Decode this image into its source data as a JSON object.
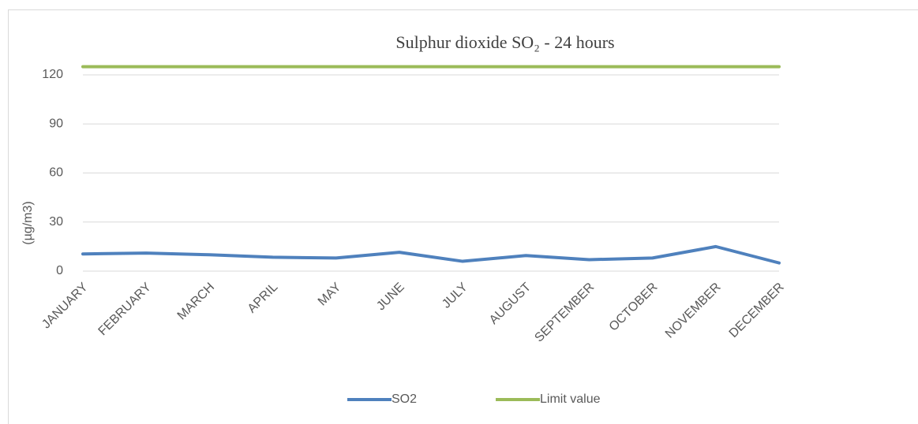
{
  "chart_data": {
    "type": "line",
    "title": "Sulphur dioxide SO₂ - 24 hours",
    "y_label": "(µg/m3)",
    "categories": [
      "JANUARY",
      "FEBRUARY",
      "MARCH",
      "APRIL",
      "MAY",
      "JUNE",
      "JULY",
      "AUGUST",
      "SEPTEMBER",
      "OCTOBER",
      "NOVEMBER",
      "DECEMBER"
    ],
    "series": [
      {
        "name": "SO2",
        "color": "#4f81bd",
        "values": [
          10.5,
          11,
          10,
          8.5,
          8,
          11.5,
          6,
          9.5,
          7,
          8,
          15,
          5
        ]
      },
      {
        "name": "Limit value",
        "color": "#9bbb59",
        "values": [
          125,
          125,
          125,
          125,
          125,
          125,
          125,
          125,
          125,
          125,
          125,
          125
        ]
      }
    ],
    "ylim": [
      0,
      120
    ],
    "yticks": [
      0,
      30,
      60,
      90,
      120
    ],
    "grid": true,
    "legend": "bottom"
  }
}
